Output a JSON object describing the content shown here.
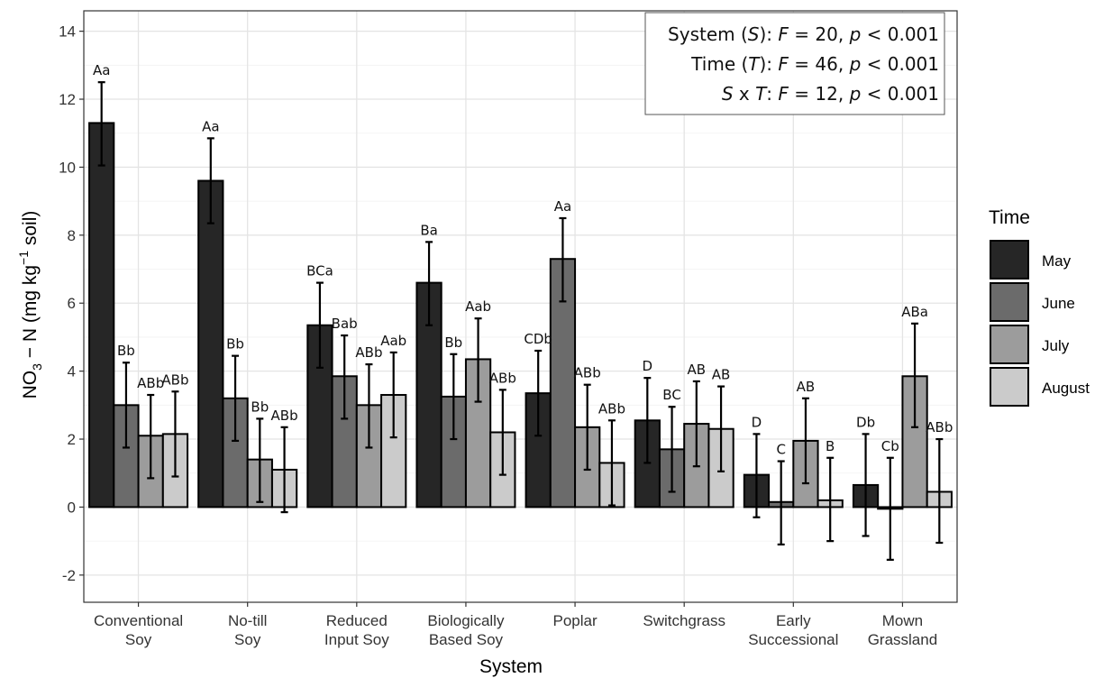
{
  "chart_data": {
    "type": "bar",
    "xlabel": "System",
    "ylabel": {
      "main": "NO",
      "sub": "3",
      "rest": " − N (mg kg",
      "sup": "−1",
      "tail": " soil)"
    },
    "ylim": [
      -2.8,
      14.6
    ],
    "yticks": [
      "-2",
      "0",
      "2",
      "4",
      "6",
      "8",
      "10",
      "12",
      "14"
    ],
    "grid": true,
    "legend_position": "right",
    "legend_title": "Time",
    "categories": [
      [
        "Conventional",
        "Soy"
      ],
      [
        "No-till",
        "Soy"
      ],
      [
        "Reduced",
        "Input Soy"
      ],
      [
        "Biologically",
        "Based Soy"
      ],
      [
        "Poplar"
      ],
      [
        "Switchgrass"
      ],
      [
        "Early",
        "Successional"
      ],
      [
        "Mown",
        "Grassland"
      ]
    ],
    "series": [
      {
        "name": "May",
        "color": "#262626",
        "values": [
          11.3,
          9.6,
          5.35,
          6.6,
          3.35,
          2.55,
          0.95,
          0.65
        ],
        "err_low": [
          10.05,
          8.35,
          4.1,
          5.35,
          2.1,
          1.3,
          -0.3,
          -0.85
        ],
        "err_high": [
          12.5,
          10.85,
          6.6,
          7.8,
          4.6,
          3.8,
          2.15,
          2.15
        ],
        "labels": [
          "Aa",
          "Aa",
          "BCa",
          "Ba",
          "CDb",
          "D",
          "D",
          "Db"
        ]
      },
      {
        "name": "June",
        "color": "#6b6b6b",
        "values": [
          3.0,
          3.2,
          3.85,
          3.25,
          7.3,
          1.7,
          0.15,
          -0.05
        ],
        "err_low": [
          1.75,
          1.95,
          2.6,
          2.0,
          6.05,
          0.45,
          -1.1,
          -1.55
        ],
        "err_high": [
          4.25,
          4.45,
          5.05,
          4.5,
          8.5,
          2.95,
          1.35,
          1.45
        ],
        "labels": [
          "Bb",
          "Bb",
          "Bab",
          "Bb",
          "Aa",
          "BC",
          "C",
          "Cb"
        ]
      },
      {
        "name": "July",
        "color": "#9c9c9c",
        "values": [
          2.1,
          1.4,
          3.0,
          4.35,
          2.35,
          2.45,
          1.95,
          3.85
        ],
        "err_low": [
          0.85,
          0.15,
          1.75,
          3.1,
          1.1,
          1.2,
          0.7,
          2.35
        ],
        "err_high": [
          3.3,
          2.6,
          4.2,
          5.55,
          3.6,
          3.7,
          3.2,
          5.4
        ],
        "labels": [
          "ABb",
          "Bb",
          "ABb",
          "Aab",
          "ABb",
          "AB",
          "AB",
          "ABa"
        ]
      },
      {
        "name": "August",
        "color": "#cbcbcb",
        "values": [
          2.15,
          1.1,
          3.3,
          2.2,
          1.3,
          2.3,
          0.2,
          0.45
        ],
        "err_low": [
          0.9,
          -0.15,
          2.05,
          0.95,
          0.05,
          1.05,
          -1.0,
          -1.05
        ],
        "err_high": [
          3.4,
          2.35,
          4.55,
          3.45,
          2.55,
          3.55,
          1.45,
          2.0
        ],
        "labels": [
          "ABb",
          "ABb",
          "Aab",
          "ABb",
          "ABb",
          "AB",
          "B",
          "ABb"
        ]
      }
    ],
    "annotation": [
      [
        {
          "t": "System ("
        },
        {
          "t": "S",
          "i": true
        },
        {
          "t": "): "
        },
        {
          "t": "F",
          "i": true
        },
        {
          "t": " = 20, "
        },
        {
          "t": "p",
          "i": true
        },
        {
          "t": " < 0.001"
        }
      ],
      [
        {
          "t": "Time ("
        },
        {
          "t": "T",
          "i": true
        },
        {
          "t": "): "
        },
        {
          "t": "F",
          "i": true
        },
        {
          "t": " = 46, "
        },
        {
          "t": "p",
          "i": true
        },
        {
          "t": " < 0.001"
        }
      ],
      [
        {
          "t": "S",
          "i": true
        },
        {
          "t": " x "
        },
        {
          "t": "T",
          "i": true
        },
        {
          "t": ": "
        },
        {
          "t": "F",
          "i": true
        },
        {
          "t": " = 12, "
        },
        {
          "t": "p",
          "i": true
        },
        {
          "t": " < 0.001"
        }
      ]
    ]
  }
}
